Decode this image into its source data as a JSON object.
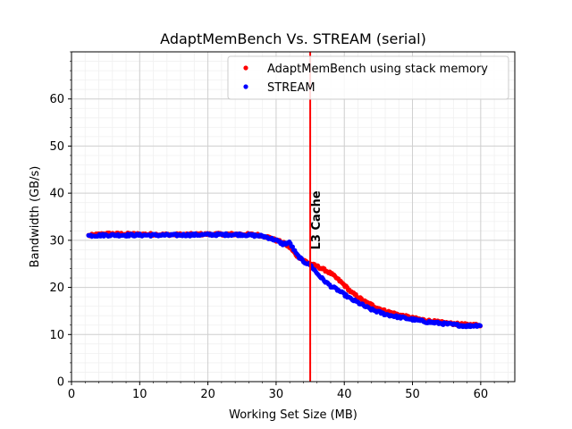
{
  "chart_data": {
    "type": "scatter",
    "title": "AdaptMemBench Vs. STREAM (serial)",
    "xlabel": "Working Set Size (MB)",
    "ylabel": "Bandwidth (GB/s)",
    "xlim": [
      0,
      65
    ],
    "ylim": [
      0,
      70
    ],
    "x_ticks": [
      0,
      10,
      20,
      30,
      40,
      50,
      60
    ],
    "y_ticks": [
      0,
      10,
      20,
      30,
      40,
      50,
      60
    ],
    "grid": "major and minor",
    "legend_position": "top-right",
    "series": [
      {
        "name": "AdaptMemBench using stack memory",
        "color": "#ff0000",
        "profile": [
          [
            2.5,
            31.0
          ],
          [
            5,
            31.4
          ],
          [
            10,
            31.3
          ],
          [
            15,
            31.2
          ],
          [
            20,
            31.3
          ],
          [
            25,
            31.3
          ],
          [
            27,
            31.2
          ],
          [
            28,
            31.0
          ],
          [
            29,
            30.6
          ],
          [
            30,
            30.0
          ],
          [
            31,
            29.5
          ],
          [
            32,
            28.5
          ],
          [
            33,
            26.8
          ],
          [
            34,
            25.8
          ],
          [
            35,
            25.0
          ],
          [
            36,
            24.5
          ],
          [
            37,
            23.8
          ],
          [
            38,
            23.0
          ],
          [
            39,
            21.8
          ],
          [
            40,
            20.5
          ],
          [
            41,
            19.0
          ],
          [
            42,
            18.0
          ],
          [
            43,
            17.0
          ],
          [
            44,
            16.3
          ],
          [
            45,
            15.6
          ],
          [
            46,
            15.0
          ],
          [
            48,
            14.2
          ],
          [
            50,
            13.5
          ],
          [
            52,
            13.0
          ],
          [
            54,
            12.6
          ],
          [
            56,
            12.3
          ],
          [
            58,
            12.1
          ],
          [
            60,
            12.0
          ]
        ]
      },
      {
        "name": "STREAM",
        "color": "#0000ff",
        "profile": [
          [
            2.5,
            31.0
          ],
          [
            5,
            31.1
          ],
          [
            10,
            31.1
          ],
          [
            15,
            31.1
          ],
          [
            20,
            31.2
          ],
          [
            25,
            31.2
          ],
          [
            27,
            31.0
          ],
          [
            28,
            30.9
          ],
          [
            29,
            30.5
          ],
          [
            30,
            30.0
          ],
          [
            31,
            29.2
          ],
          [
            32,
            29.5
          ],
          [
            33,
            27.0
          ],
          [
            34,
            25.5
          ],
          [
            35,
            24.8
          ],
          [
            36,
            23.0
          ],
          [
            37,
            21.5
          ],
          [
            38,
            20.3
          ],
          [
            39,
            19.5
          ],
          [
            40,
            18.5
          ],
          [
            41,
            17.5
          ],
          [
            42,
            16.8
          ],
          [
            43,
            16.0
          ],
          [
            44,
            15.3
          ],
          [
            45,
            14.8
          ],
          [
            46,
            14.3
          ],
          [
            48,
            13.7
          ],
          [
            50,
            13.2
          ],
          [
            52,
            12.7
          ],
          [
            54,
            12.4
          ],
          [
            56,
            12.1
          ],
          [
            58,
            11.8
          ],
          [
            60,
            12.0
          ]
        ]
      }
    ],
    "annotations": [
      {
        "type": "vline",
        "x": 35,
        "color": "#ff0000",
        "label": "L3 Cache"
      }
    ]
  }
}
